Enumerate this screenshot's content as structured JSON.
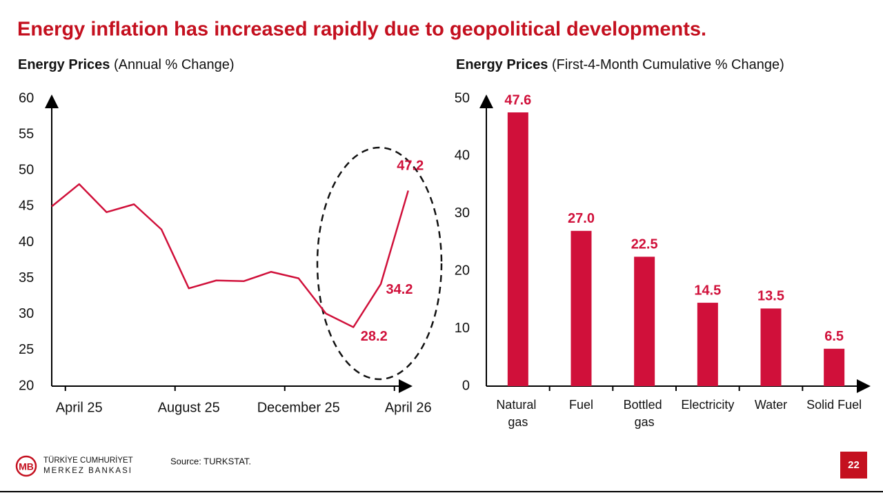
{
  "header": {
    "title": "Energy inflation has increased rapidly due to geopolitical developments."
  },
  "chart_data": [
    {
      "type": "line",
      "title": "Energy Prices",
      "subtitle": "(Annual % Change)",
      "categories": [
        null,
        "April 25",
        null,
        null,
        null,
        "August 25",
        null,
        null,
        null,
        "December 25",
        null,
        null,
        null,
        "April 26"
      ],
      "values": [
        45.0,
        48.1,
        44.2,
        45.3,
        41.8,
        33.6,
        34.7,
        34.6,
        35.9,
        35.0,
        30.1,
        28.2,
        34.2,
        47.2
      ],
      "value_labels": [
        null,
        null,
        null,
        null,
        null,
        null,
        null,
        null,
        null,
        null,
        null,
        "28.2",
        "34.2",
        "47.2"
      ],
      "color": "#d0103a",
      "ylim": [
        20,
        60
      ],
      "yticks": [
        20,
        25,
        30,
        35,
        40,
        45,
        50,
        55,
        60
      ]
    },
    {
      "type": "bar",
      "title": "Energy Prices",
      "subtitle": "(First-4-Month Cumulative % Change)",
      "categories": [
        "Natural gas",
        "Fuel",
        "Bottled gas",
        "Electricity",
        "Water",
        "Solid Fuel"
      ],
      "values": [
        47.6,
        27.0,
        22.5,
        14.5,
        13.5,
        6.5
      ],
      "value_labels": [
        "47.6",
        "27.0",
        "22.5",
        "14.5",
        "13.5",
        "6.5"
      ],
      "color": "#d0103a",
      "ylim": [
        0,
        50
      ],
      "yticks": [
        0,
        10,
        20,
        30,
        40,
        50
      ]
    }
  ],
  "footer": {
    "logo_line1": "TÜRKİYE CUMHURİYET",
    "logo_line2": "MERKEZ BANKASI",
    "source": "Source: TURKSTAT.",
    "page": "22"
  }
}
